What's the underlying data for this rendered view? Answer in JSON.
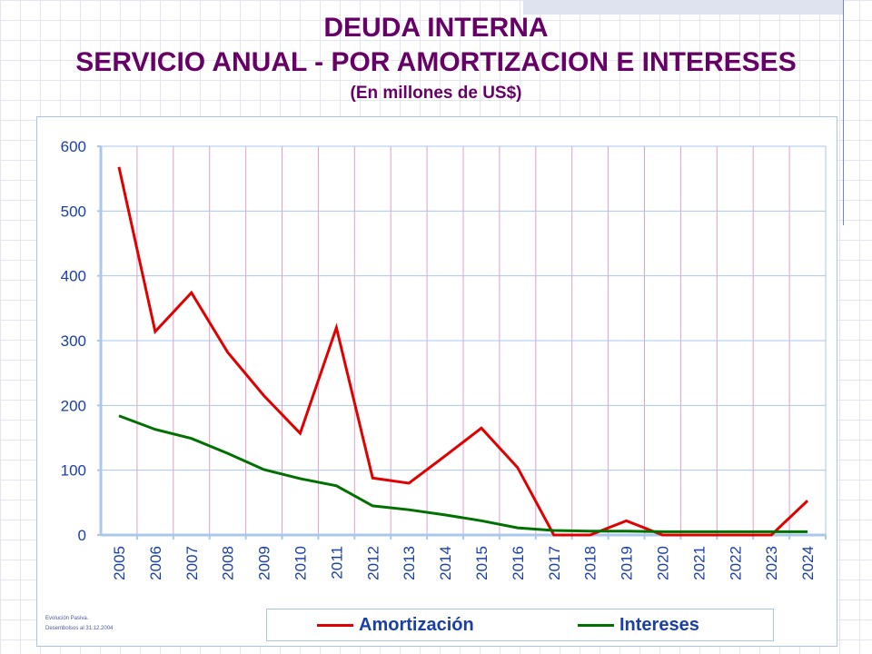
{
  "title": {
    "line1": "DEUDA INTERNA",
    "line2": "SERVICIO ANUAL - POR AMORTIZACION E INTERESES",
    "line3": "(En millones de US$)"
  },
  "footnote": {
    "line1": "Evolución Pasiva.",
    "line2": "Desembolsos al 31.12.2004"
  },
  "colors": {
    "title": "#660066",
    "amortizacion": "#e00000",
    "intereses": "#007000",
    "axis_text": "#1a3fa8",
    "gridline": "#a9c8ec",
    "vgrid": "#e0a0c8"
  },
  "chart_data": {
    "type": "line",
    "title": "DEUDA INTERNA - SERVICIO ANUAL - POR AMORTIZACION E INTERESES",
    "ylabel": "(En millones de US$)",
    "ylim": [
      0,
      600
    ],
    "yticks": [
      "0",
      "100",
      "200",
      "300",
      "400",
      "500",
      "600"
    ],
    "x": [
      "2005",
      "2006",
      "2007",
      "2008",
      "2009",
      "2010",
      "2011",
      "2012",
      "2013",
      "2014",
      "2015",
      "2016",
      "2017",
      "2018",
      "2019",
      "2020",
      "2021",
      "2022",
      "2023",
      "2024"
    ],
    "series": [
      {
        "name": "Amortización",
        "values": [
          568,
          314,
          374,
          282,
          215,
          157,
          320,
          88,
          80,
          122,
          165,
          104,
          0,
          0,
          22,
          0,
          0,
          0,
          0,
          53
        ]
      },
      {
        "name": "Intereses",
        "values": [
          184,
          163,
          149,
          126,
          101,
          87,
          76,
          45,
          39,
          31,
          22,
          11,
          7,
          6,
          6,
          5,
          5,
          5,
          5,
          5
        ]
      }
    ],
    "legend": "bottom",
    "grid": true
  }
}
